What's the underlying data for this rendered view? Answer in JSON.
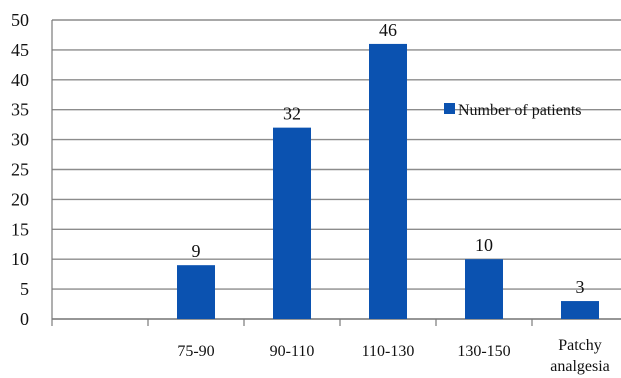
{
  "chart_data": {
    "type": "bar",
    "categories": [
      "",
      "75-90",
      "90-110",
      "110-130",
      "130-150",
      "Patchy analgesia"
    ],
    "series": [
      {
        "name": "Number of patients",
        "values": [
          null,
          9,
          32,
          46,
          10,
          3
        ],
        "color": "#0b52b0"
      }
    ],
    "data_labels": [
      "",
      "9",
      "32",
      "46",
      "10",
      "3"
    ],
    "ylim": [
      0,
      50
    ],
    "yticks": [
      0,
      5,
      10,
      15,
      20,
      25,
      30,
      35,
      40,
      45,
      50
    ],
    "grid": true,
    "legend_position": "right",
    "title": "",
    "xlabel": "",
    "ylabel": ""
  }
}
